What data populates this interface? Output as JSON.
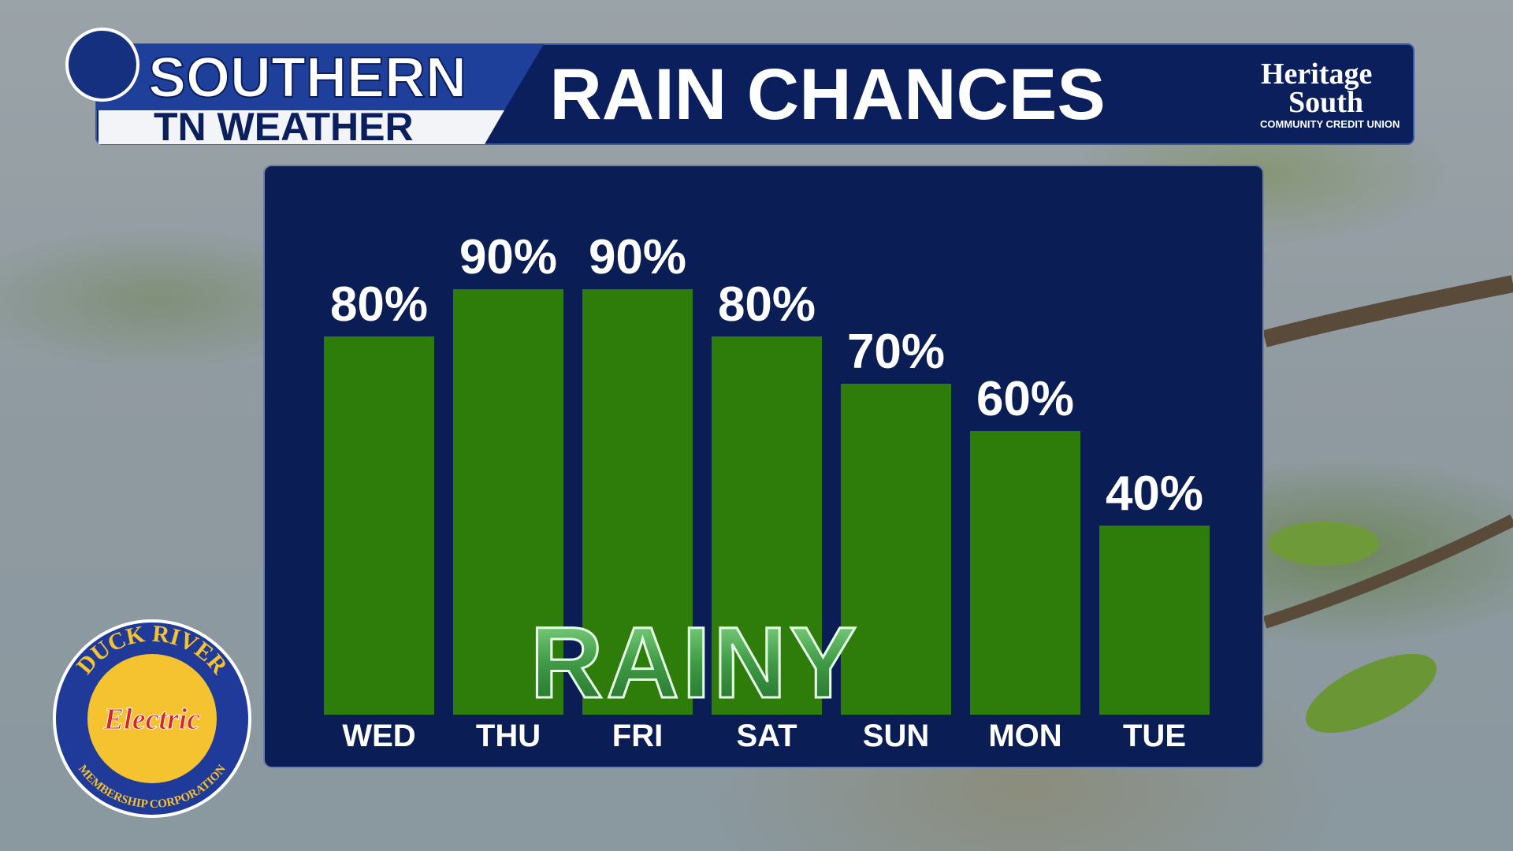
{
  "brand": {
    "top": "SOUTHERN",
    "bottom": "TN WEATHER"
  },
  "sponsor_top": {
    "name_1": "Heritage",
    "name_2": "South",
    "tagline": "COMMUNITY CREDIT UNION"
  },
  "sponsor_bottom": {
    "arc_top": "DUCK RIVER",
    "center": "Electric",
    "arc_bottom": "MEMBERSHIP CORPORATION"
  },
  "condition": "RAINY",
  "chart_data": {
    "type": "bar",
    "title": "RAIN CHANCES",
    "categories": [
      "WED",
      "THU",
      "FRI",
      "SAT",
      "SUN",
      "MON",
      "TUE"
    ],
    "values": [
      80,
      90,
      90,
      80,
      70,
      60,
      40
    ],
    "value_labels": [
      "80%",
      "90%",
      "90%",
      "80%",
      "70%",
      "60%",
      "40%"
    ],
    "color": "#2e7d0a"
  }
}
